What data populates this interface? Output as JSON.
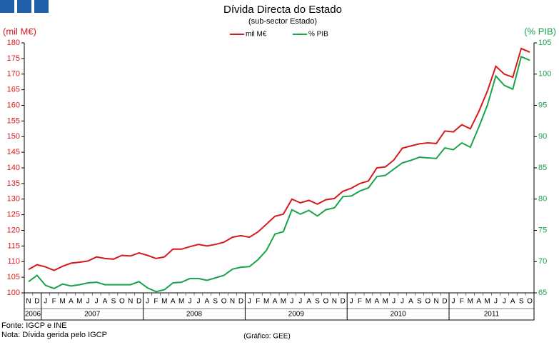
{
  "chart_data": {
    "type": "line",
    "title": "Dívida Directa do Estado",
    "subtitle": "(sub-sector  Estado)",
    "y_label": "(mil M€)",
    "y2_label": "(% PIB)",
    "categories": [
      "N",
      "D",
      "J",
      "F",
      "M",
      "A",
      "M",
      "J",
      "J",
      "A",
      "S",
      "O",
      "N",
      "D",
      "J",
      "F",
      "M",
      "A",
      "M",
      "J",
      "J",
      "A",
      "S",
      "O",
      "N",
      "D",
      "J",
      "F",
      "M",
      "A",
      "M",
      "J",
      "J",
      "A",
      "S",
      "O",
      "N",
      "D",
      "J",
      "F",
      "M",
      "A",
      "M",
      "J",
      "J",
      "A",
      "S",
      "O",
      "N",
      "D",
      "J",
      "F",
      "M",
      "A",
      "M",
      "J",
      "J",
      "A",
      "S",
      "O"
    ],
    "year_labels": [
      "2006",
      "2007",
      "2008",
      "2009",
      "2010",
      "2011"
    ],
    "series": [
      {
        "name": "mil M€",
        "color": "#d7191c",
        "values": [
          107.5,
          109,
          108.3,
          107.2,
          108.5,
          109.5,
          109.8,
          110.2,
          111.5,
          111,
          110.8,
          112,
          111.8,
          112.8,
          112,
          111,
          111.5,
          114,
          114,
          114.8,
          115.5,
          115,
          115.5,
          116.2,
          117.8,
          118.3,
          117.8,
          119.5,
          122,
          124.5,
          125.2,
          130,
          128.8,
          129.6,
          128.4,
          129.8,
          130.2,
          132.5,
          133.5,
          135,
          135.8,
          140,
          140.3,
          142.5,
          146.3,
          147,
          147.7,
          148,
          147.8,
          151.8,
          151.5,
          153.8,
          152.5,
          158,
          164.5,
          172.5,
          170,
          169,
          178.2,
          177
        ]
      },
      {
        "name": "% PIB",
        "color": "#1aa34a",
        "axis": "y2",
        "values": [
          66.8,
          67.8,
          66.2,
          65.7,
          66.4,
          66.1,
          66.3,
          66.6,
          66.7,
          66.3,
          66.3,
          66.3,
          66.3,
          66.8,
          65.8,
          65.2,
          65.5,
          66.6,
          66.7,
          67.3,
          67.3,
          67,
          67.4,
          67.8,
          68.8,
          69.1,
          69.2,
          70.3,
          71.8,
          74.4,
          74.8,
          78.3,
          77.6,
          78.2,
          77.3,
          78.3,
          78.6,
          80.4,
          80.5,
          81.3,
          81.8,
          83.6,
          83.8,
          84.8,
          85.8,
          86.2,
          86.7,
          86.6,
          86.5,
          88.2,
          87.9,
          89,
          88.3,
          91.5,
          95,
          99.7,
          98.2,
          97.6,
          102.8,
          102.2
        ]
      }
    ],
    "ylim": [
      100,
      180
    ],
    "yticks": [
      100,
      105,
      110,
      115,
      120,
      125,
      130,
      135,
      140,
      145,
      150,
      155,
      160,
      165,
      170,
      175,
      180
    ],
    "y2lim": [
      65,
      105
    ],
    "y2ticks": [
      65,
      70,
      75,
      80,
      85,
      90,
      95,
      100,
      105
    ],
    "grid": false,
    "footnotes": [
      "Fonte: IGCP e INE",
      "Nota: Dívida gerida pelo IGCP"
    ],
    "credit": "(Gráfico: GEE)"
  }
}
